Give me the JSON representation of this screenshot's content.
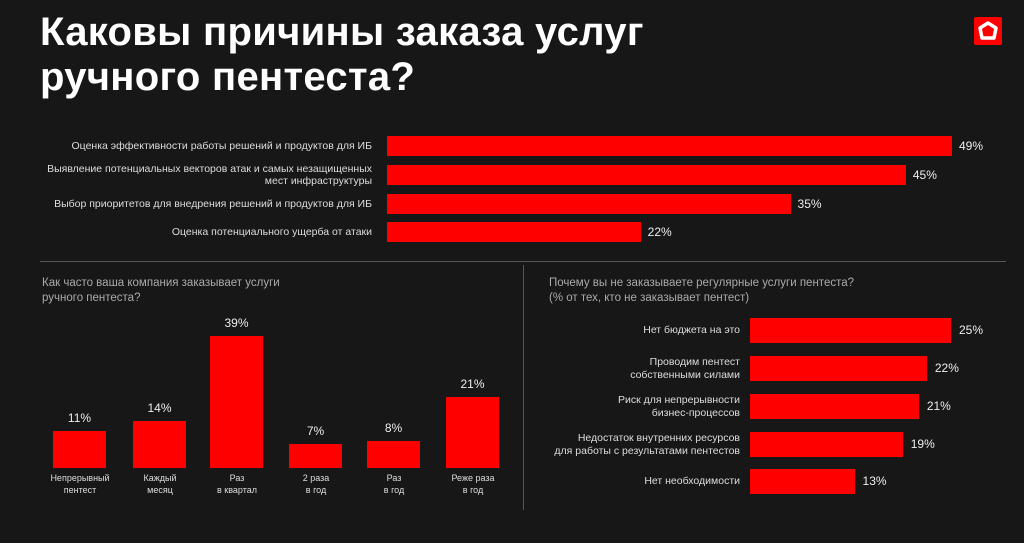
{
  "title_line1": "Каковы причины заказа услуг",
  "title_line2": "ручного пентеста?",
  "accent": "#ff0000",
  "chart_data": [
    {
      "type": "bar",
      "orientation": "horizontal",
      "categories": [
        "Оценка эффективности работы решений и продуктов для ИБ",
        "Выявление потенциальных векторов атак и самых незащищенных мест инфраструктуры",
        "Выбор приоритетов для внедрения решений и продуктов для ИБ",
        "Оценка потенциального ущерба от атаки"
      ],
      "values": [
        49,
        45,
        35,
        22
      ],
      "labels": [
        "49%",
        "45%",
        "35%",
        "22%"
      ]
    },
    {
      "type": "bar",
      "orientation": "vertical",
      "title": "Как часто ваша компания заказывает услуги ручного пентеста?",
      "categories": [
        "Непрерывный пентест",
        "Каждый месяц",
        "Раз в квартал",
        "2 раза в год",
        "Раз в год",
        "Реже раза в год"
      ],
      "category_lines": [
        [
          "Непрерывный",
          "пентест"
        ],
        [
          "Каждый",
          "месяц"
        ],
        [
          "Раз",
          "в квартал"
        ],
        [
          "2 раза",
          "в год"
        ],
        [
          "Раз",
          "в год"
        ],
        [
          "Реже раза",
          "в год"
        ]
      ],
      "values": [
        11,
        14,
        39,
        7,
        8,
        21
      ],
      "labels": [
        "11%",
        "14%",
        "39%",
        "7%",
        "8%",
        "21%"
      ]
    },
    {
      "type": "bar",
      "orientation": "horizontal",
      "title": "Почему вы не заказываете регулярные услуги пентеста?",
      "subtitle": "(% от тех, кто не заказывает пентест)",
      "categories": [
        "Нет бюджета на это",
        "Проводим пентест собственными силами",
        "Риск для непрерывности бизнес-процессов",
        "Недостаток внутренних ресурсов для работы с результатами пентестов",
        "Нет необходимости"
      ],
      "category_lines": [
        [
          "Нет бюджета на это"
        ],
        [
          "Проводим пентест",
          "собственными силами"
        ],
        [
          "Риск для непрерывности",
          "бизнес-процессов"
        ],
        [
          "Недостаток внутренних ресурсов",
          "для работы с результатами пентестов"
        ],
        [
          "Нет необходимости"
        ]
      ],
      "values": [
        25,
        22,
        21,
        19,
        13
      ],
      "labels": [
        "25%",
        "22%",
        "21%",
        "19%",
        "13%"
      ]
    }
  ]
}
